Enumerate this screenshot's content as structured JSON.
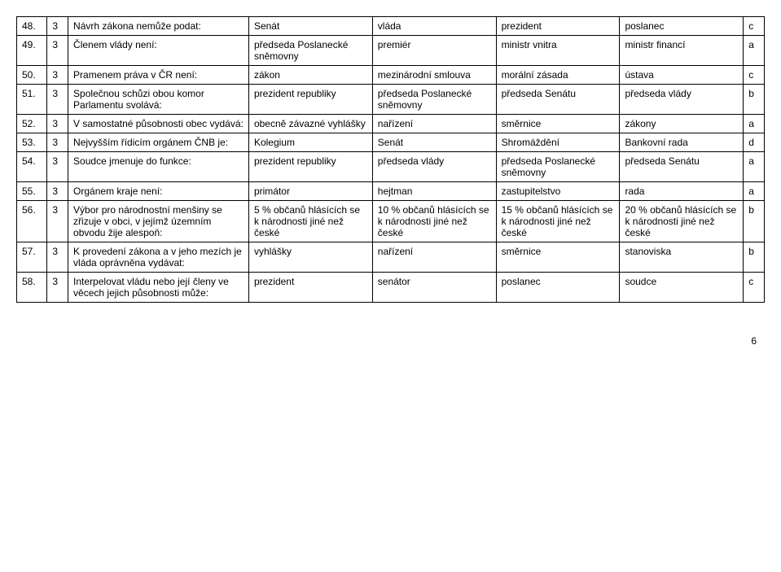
{
  "rows": [
    {
      "num": "48.",
      "pts": "3",
      "q": "Návrh zákona nemůže podat:",
      "a": "Senát",
      "b": "vláda",
      "c": "prezident",
      "d": "poslanec",
      "ans": "c"
    },
    {
      "num": "49.",
      "pts": "3",
      "q": "Členem vlády není:",
      "a": "předseda Poslanecké sněmovny",
      "b": "premiér",
      "c": "ministr vnitra",
      "d": "ministr financí",
      "ans": "a"
    },
    {
      "num": "50.",
      "pts": "3",
      "q": "Pramenem práva v ČR není:",
      "a": "zákon",
      "b": "mezinárodní smlouva",
      "c": "morální zásada",
      "d": "ústava",
      "ans": "c"
    },
    {
      "num": "51.",
      "pts": "3",
      "q": "Společnou schůzi obou komor Parlamentu svolává:",
      "a": "prezident republiky",
      "b": "předseda Poslanecké sněmovny",
      "c": "předseda Senátu",
      "d": "předseda vlády",
      "ans": "b"
    },
    {
      "num": "52.",
      "pts": "3",
      "q": "V samostatné působnosti obec vydává:",
      "a": "obecně závazné vyhlášky",
      "b": "nařízení",
      "c": "směrnice",
      "d": "zákony",
      "ans": "a"
    },
    {
      "num": "53.",
      "pts": "3",
      "q": "Nejvyšším řídicím orgánem ČNB je:",
      "a": "Kolegium",
      "b": "Senát",
      "c": "Shromáždění",
      "d": "Bankovní rada",
      "ans": "d"
    },
    {
      "num": "54.",
      "pts": "3",
      "q": "Soudce jmenuje do funkce:",
      "a": "prezident republiky",
      "b": "předseda vlády",
      "c": "předseda Poslanecké sněmovny",
      "d": "předseda Senátu",
      "ans": "a"
    },
    {
      "num": "55.",
      "pts": "3",
      "q": "Orgánem kraje není:",
      "a": "primátor",
      "b": "hejtman",
      "c": "zastupitelstvo",
      "d": "rada",
      "ans": "a"
    },
    {
      "num": "56.",
      "pts": "3",
      "q": "Výbor pro národnostní menšiny se zřizuje v obci, v jejímž územním obvodu žije alespoň:",
      "a": "5 % občanů hlásících se k národnosti jiné než české",
      "b": "10 % občanů hlásících se k národnosti jiné než české",
      "c": "15 % občanů hlásících se k národnosti jiné než české",
      "d": "20 % občanů hlásících se k národnosti jiné než české",
      "ans": "b"
    },
    {
      "num": "57.",
      "pts": "3",
      "q": "K provedení zákona a v jeho mezích je vláda oprávněna vydávat:",
      "a": "vyhlášky",
      "b": "nařízení",
      "c": "směrnice",
      "d": "stanoviska",
      "ans": "b"
    },
    {
      "num": "58.",
      "pts": "3",
      "q": "Interpelovat vládu nebo její členy ve věcech jejich působnosti může:",
      "a": "prezident",
      "b": "senátor",
      "c": "poslanec",
      "d": "soudce",
      "ans": "c"
    }
  ],
  "page_number": "6"
}
